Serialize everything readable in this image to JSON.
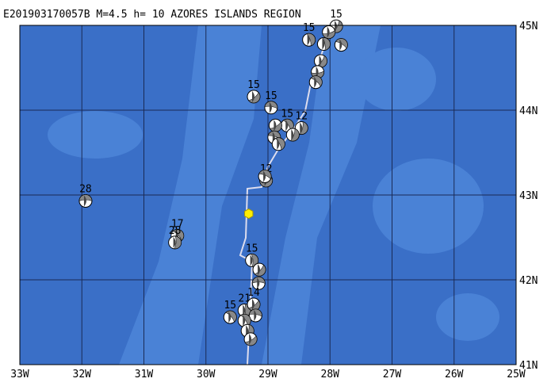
{
  "title": "E201903170057B M=4.5 h= 10 AZORES ISLANDS REGION",
  "map": {
    "xlim": [
      -33,
      -25
    ],
    "ylim": [
      41,
      45
    ],
    "xticks": [
      {
        "value": -33,
        "label": "33W"
      },
      {
        "value": -32,
        "label": "32W"
      },
      {
        "value": -31,
        "label": "31W"
      },
      {
        "value": -30,
        "label": "30W"
      },
      {
        "value": -29,
        "label": "29W"
      },
      {
        "value": -28,
        "label": "28W"
      },
      {
        "value": -27,
        "label": "27W"
      },
      {
        "value": -26,
        "label": "26W"
      },
      {
        "value": -25,
        "label": "25W"
      }
    ],
    "yticks": [
      {
        "value": 41,
        "label": "41N"
      },
      {
        "value": 42,
        "label": "42N"
      },
      {
        "value": 43,
        "label": "43N"
      },
      {
        "value": 44,
        "label": "44N"
      },
      {
        "value": 45,
        "label": "45N"
      }
    ],
    "epicenter": {
      "lon": -29.31,
      "lat": 42.78
    },
    "events": [
      {
        "lon": -31.94,
        "lat": 42.93,
        "depth": 28
      },
      {
        "lon": -30.46,
        "lat": 42.52,
        "depth": 17
      },
      {
        "lon": -30.5,
        "lat": 42.44,
        "depth": 28
      },
      {
        "lon": -29.23,
        "lat": 44.16,
        "depth": 15
      },
      {
        "lon": -28.95,
        "lat": 44.03,
        "depth": 15
      },
      {
        "lon": -28.69,
        "lat": 43.82,
        "depth": 15
      },
      {
        "lon": -28.46,
        "lat": 43.79,
        "depth": 12
      },
      {
        "lon": -28.88,
        "lat": 43.82
      },
      {
        "lon": -28.9,
        "lat": 43.68
      },
      {
        "lon": -28.83,
        "lat": 43.6
      },
      {
        "lon": -28.6,
        "lat": 43.71
      },
      {
        "lon": -29.03,
        "lat": 43.17,
        "depth": 12
      },
      {
        "lon": -29.05,
        "lat": 43.22
      },
      {
        "lon": -28.34,
        "lat": 44.83,
        "depth": 15
      },
      {
        "lon": -27.9,
        "lat": 44.99,
        "depth": 15
      },
      {
        "lon": -28.02,
        "lat": 44.92
      },
      {
        "lon": -27.82,
        "lat": 44.77
      },
      {
        "lon": -28.1,
        "lat": 44.78
      },
      {
        "lon": -28.15,
        "lat": 44.58
      },
      {
        "lon": -28.2,
        "lat": 44.45
      },
      {
        "lon": -28.23,
        "lat": 44.33
      },
      {
        "lon": -29.26,
        "lat": 42.23,
        "depth": 15
      },
      {
        "lon": -29.14,
        "lat": 42.12
      },
      {
        "lon": -29.15,
        "lat": 41.96
      },
      {
        "lon": -29.61,
        "lat": 41.56,
        "depth": 15
      },
      {
        "lon": -29.38,
        "lat": 41.64,
        "depth": 21
      },
      {
        "lon": -29.23,
        "lat": 41.71,
        "depth": 14
      },
      {
        "lon": -29.2,
        "lat": 41.58
      },
      {
        "lon": -29.38,
        "lat": 41.52
      },
      {
        "lon": -29.33,
        "lat": 41.4
      },
      {
        "lon": -29.28,
        "lat": 41.3
      }
    ]
  }
}
